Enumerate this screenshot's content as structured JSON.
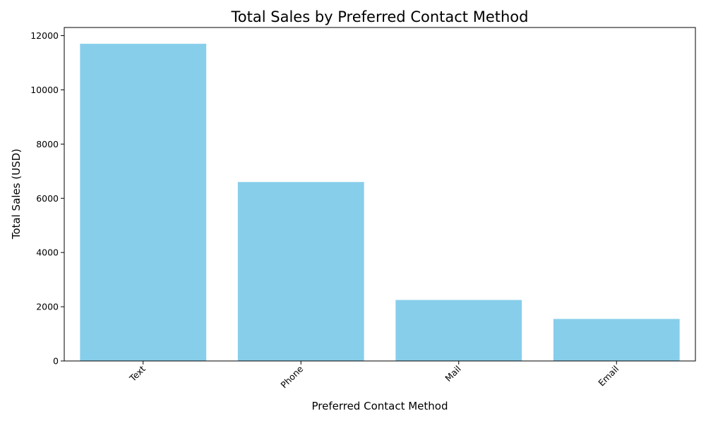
{
  "chart_data": {
    "type": "bar",
    "title": "Total Sales by Preferred Contact Method",
    "xlabel": "Preferred Contact Method",
    "ylabel": "Total Sales (USD)",
    "categories": [
      "Text",
      "Phone",
      "Mail",
      "Email"
    ],
    "values": [
      11700,
      6600,
      2250,
      1550
    ],
    "ylim": [
      0,
      12300
    ],
    "yticks": [
      0,
      2000,
      4000,
      6000,
      8000,
      10000,
      12000
    ],
    "bar_color": "#87ceeb",
    "grid": false,
    "legend": "none",
    "xtick_rotation": 45
  }
}
